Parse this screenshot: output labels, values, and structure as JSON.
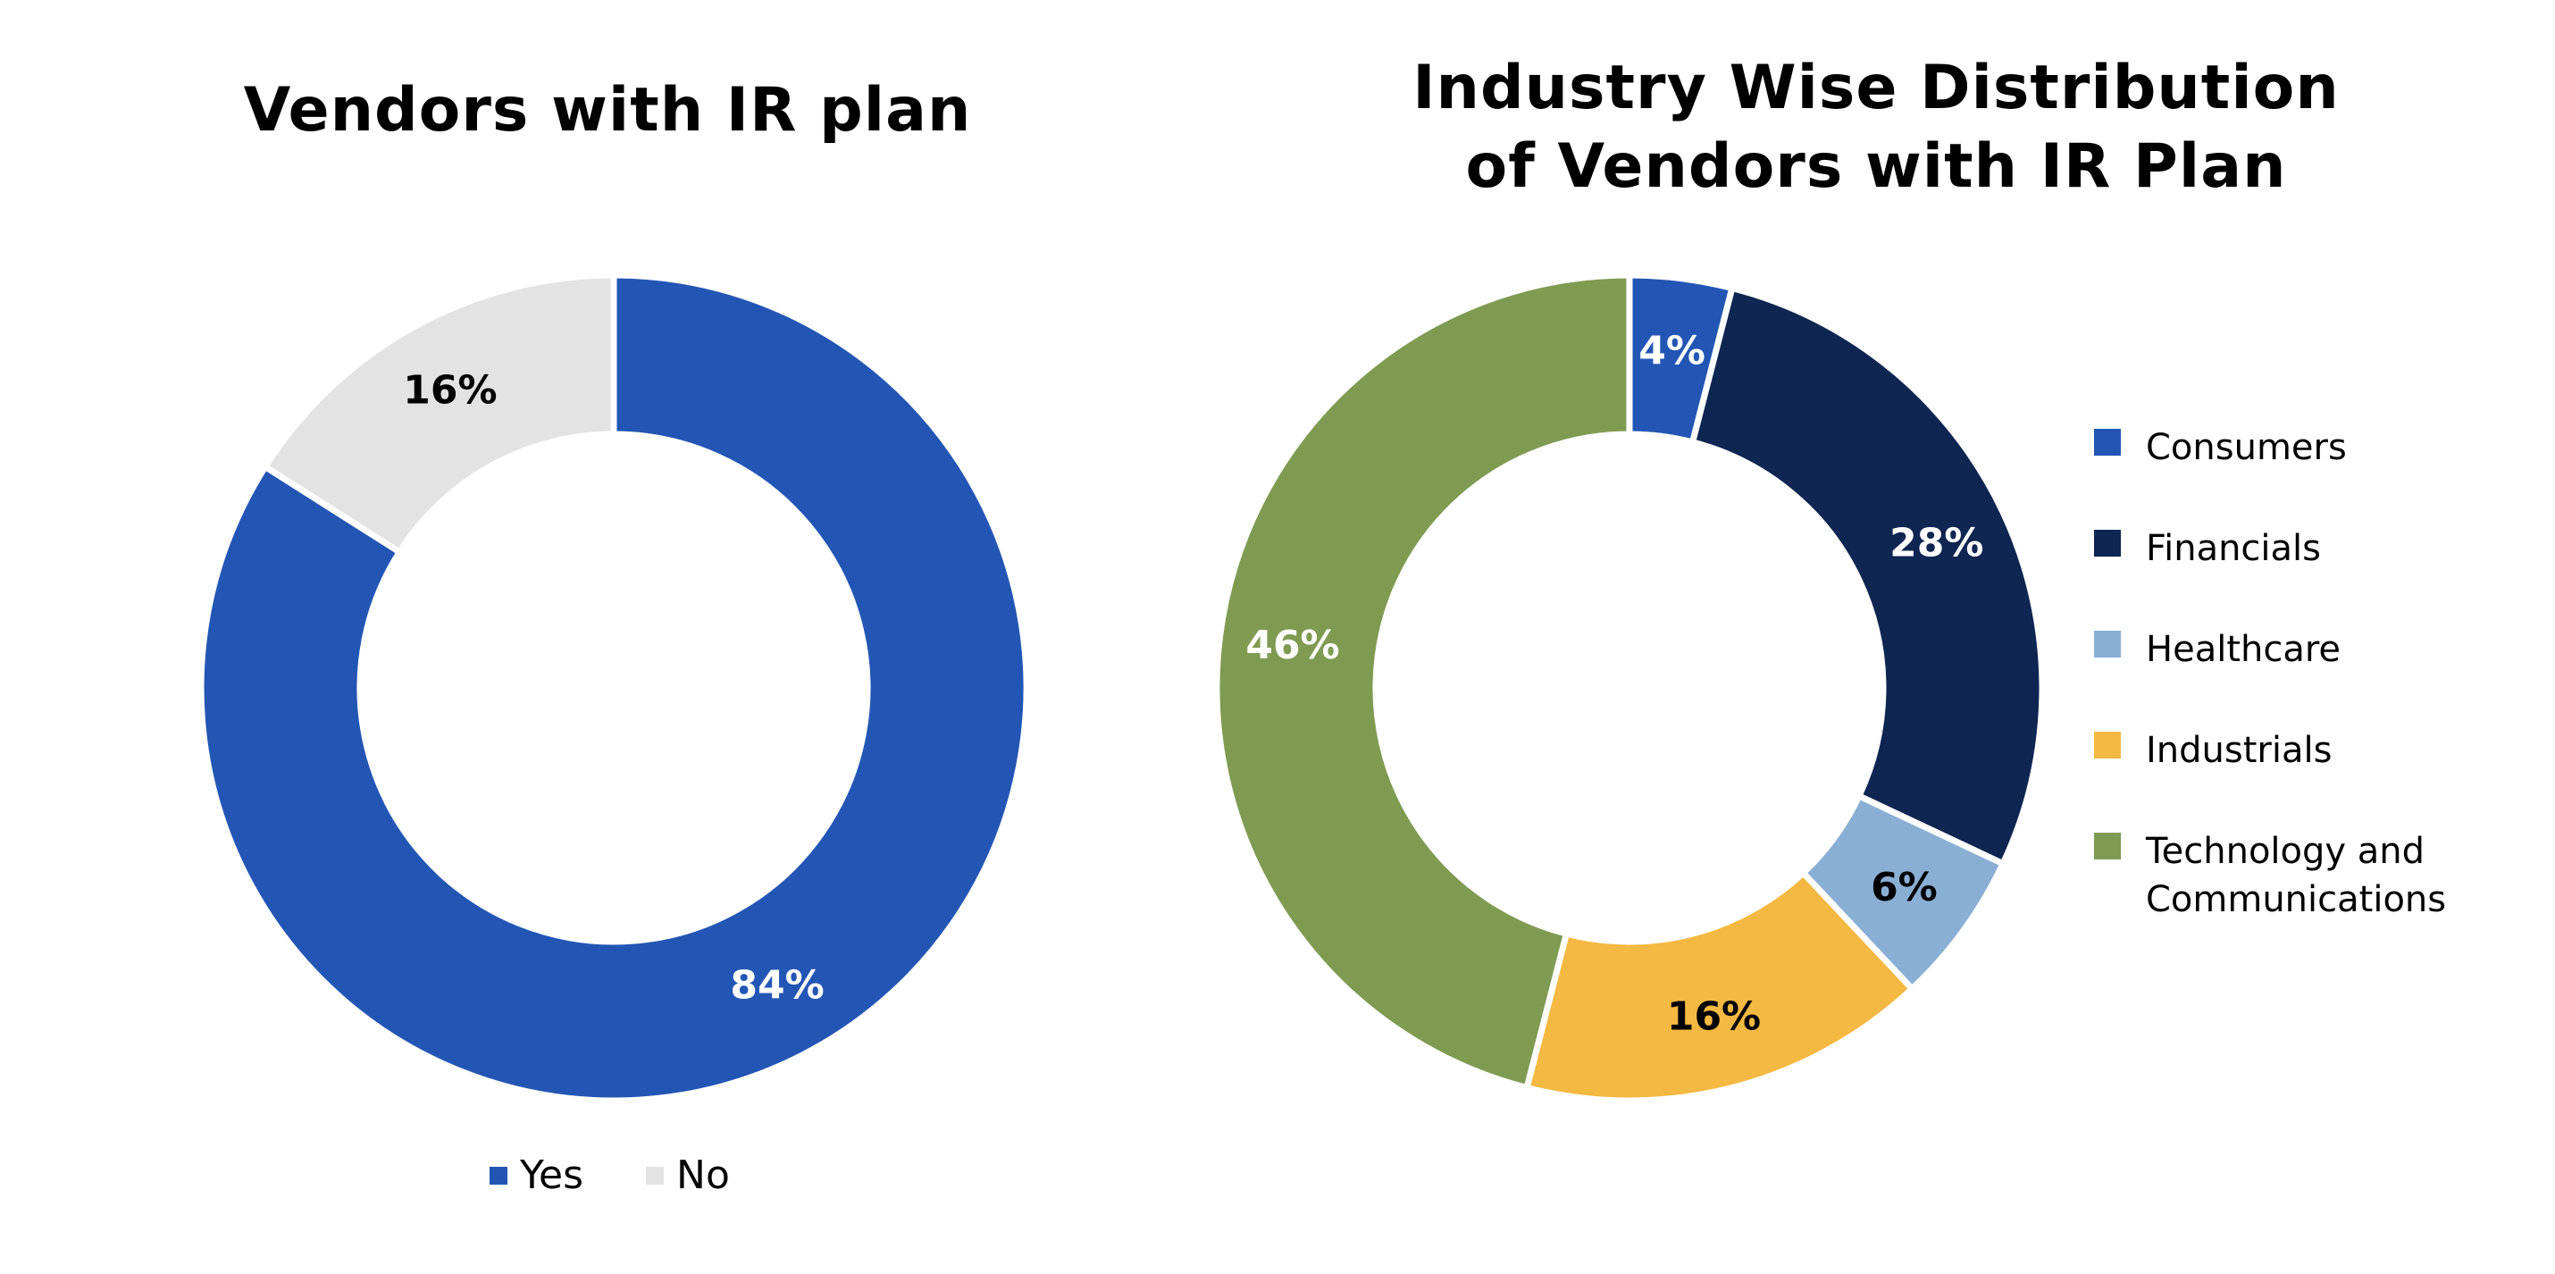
{
  "chart_data": [
    {
      "type": "pie",
      "donut": true,
      "title": "Vendors with IR plan",
      "legend_position": "bottom",
      "slices": [
        {
          "label": "Yes",
          "value": 84,
          "display": "84%",
          "color": "#2356B4",
          "label_color": "#ffffff"
        },
        {
          "label": "No",
          "value": 16,
          "display": "16%",
          "color": "#E3E3E3",
          "label_color": "#000000"
        }
      ]
    },
    {
      "type": "pie",
      "donut": true,
      "title": "Industry Wise Distribution of Vendors with IR Plan",
      "legend_position": "right",
      "slices": [
        {
          "label": "Consumers",
          "value": 4,
          "display": "4%",
          "color": "#2356B4",
          "label_color": "#ffffff"
        },
        {
          "label": "Financials",
          "value": 28,
          "display": "28%",
          "color": "#0F2552",
          "label_color": "#ffffff"
        },
        {
          "label": "Healthcare",
          "value": 6,
          "display": "6%",
          "color": "#8AAFD5",
          "label_color": "#000000"
        },
        {
          "label": "Industrials",
          "value": 16,
          "display": "16%",
          "color": "#F4B942",
          "label_color": "#000000"
        },
        {
          "label": "Technology and Communications",
          "value": 46,
          "display": "46%",
          "color": "#7F9B52",
          "label_color": "#ffffff"
        }
      ]
    }
  ]
}
